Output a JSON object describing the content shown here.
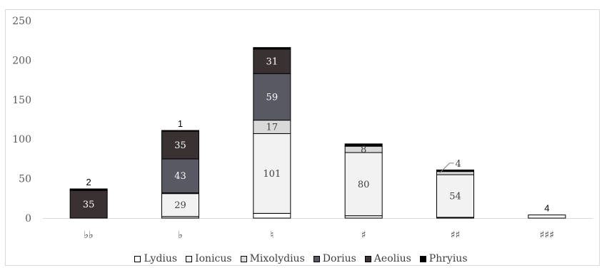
{
  "chart_data": {
    "type": "bar",
    "stacked": true,
    "title": "",
    "xlabel": "",
    "ylabel": "",
    "ylim": [
      0,
      250
    ],
    "yticks": [
      "0",
      "50",
      "100",
      "150",
      "200",
      "250"
    ],
    "grid": false,
    "legend_position": "bottom",
    "categories": [
      "♭♭",
      "♭",
      "♮",
      "♯",
      "♯♯",
      "♯♯♯"
    ],
    "series": [
      {
        "name": "Lydius",
        "color": "#ffffff",
        "values": [
          0,
          2,
          6,
          3,
          1,
          4
        ]
      },
      {
        "name": "Ionicus",
        "color": "#f2f2f2",
        "values": [
          0,
          29,
          101,
          80,
          54,
          0
        ]
      },
      {
        "name": "Mixolydius",
        "color": "#d9d9d9",
        "values": [
          0,
          1,
          17,
          8,
          4,
          0
        ]
      },
      {
        "name": "Dorius",
        "color": "#595963",
        "values": [
          0,
          43,
          59,
          0,
          0,
          0
        ]
      },
      {
        "name": "Aeolius",
        "color": "#3a3232",
        "values": [
          35,
          35,
          31,
          0,
          0,
          0
        ]
      },
      {
        "name": "Phryius",
        "color": "#000000",
        "values": [
          2,
          1,
          2,
          3,
          2,
          0
        ]
      }
    ],
    "segment_labels": [
      {
        "category": 0,
        "series": 4,
        "text": "35"
      },
      {
        "category": 1,
        "series": 1,
        "text": "29"
      },
      {
        "category": 1,
        "series": 3,
        "text": "43"
      },
      {
        "category": 1,
        "series": 4,
        "text": "35"
      },
      {
        "category": 2,
        "series": 1,
        "text": "101"
      },
      {
        "category": 2,
        "series": 2,
        "text": "17"
      },
      {
        "category": 2,
        "series": 3,
        "text": "59"
      },
      {
        "category": 2,
        "series": 4,
        "text": "31"
      },
      {
        "category": 3,
        "series": 1,
        "text": "80"
      },
      {
        "category": 3,
        "series": 2,
        "text": "8"
      },
      {
        "category": 4,
        "series": 1,
        "text": "54"
      }
    ],
    "top_labels": [
      {
        "category": 0,
        "text": "2"
      },
      {
        "category": 1,
        "text": "1"
      },
      {
        "category": 5,
        "text": "4"
      }
    ],
    "callouts": [
      {
        "category": 4,
        "series": 2,
        "text": "4"
      }
    ]
  }
}
